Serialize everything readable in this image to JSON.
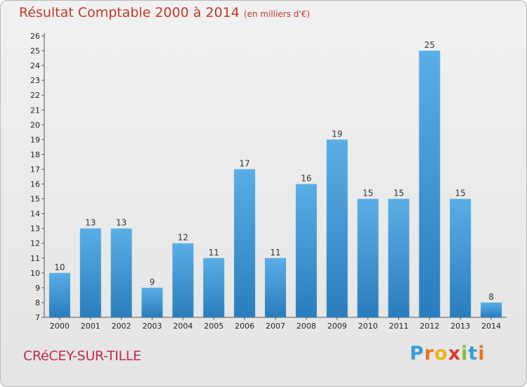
{
  "header": {
    "title": "Résultat Comptable 2000 à 2014",
    "unit": "(en milliers d'€)"
  },
  "footer": {
    "town": "CRéCEY-SUR-TILLE",
    "logo_letters": [
      "P",
      "r",
      "o",
      "x",
      "i",
      "t",
      "i"
    ],
    "logo_colors": [
      "#3b9bd6",
      "#e8731e",
      "#e8b51e",
      "#d93a2e",
      "#7fbf3c",
      "#3b9bd6",
      "#e8731e"
    ]
  },
  "colors": {
    "title": "#c0392b",
    "town": "#c02a52",
    "bar_light": "#5aaee6",
    "bar_dark": "#2a7dbd"
  },
  "chart_data": {
    "type": "bar",
    "title": "Résultat Comptable 2000 à 2014",
    "subtitle": "(en milliers d'€)",
    "categories": [
      "2000",
      "2001",
      "2002",
      "2003",
      "2004",
      "2005",
      "2006",
      "2007",
      "2008",
      "2009",
      "2010",
      "2011",
      "2012",
      "2013",
      "2014"
    ],
    "values": [
      10,
      13,
      13,
      9,
      12,
      11,
      17,
      11,
      16,
      19,
      15,
      15,
      25,
      15,
      8
    ],
    "ylim": [
      7,
      26
    ],
    "yticks": [
      7,
      8,
      9,
      10,
      11,
      12,
      13,
      14,
      15,
      16,
      17,
      18,
      19,
      20,
      21,
      22,
      23,
      24,
      25,
      26
    ],
    "grid": false,
    "data_labels": true
  }
}
